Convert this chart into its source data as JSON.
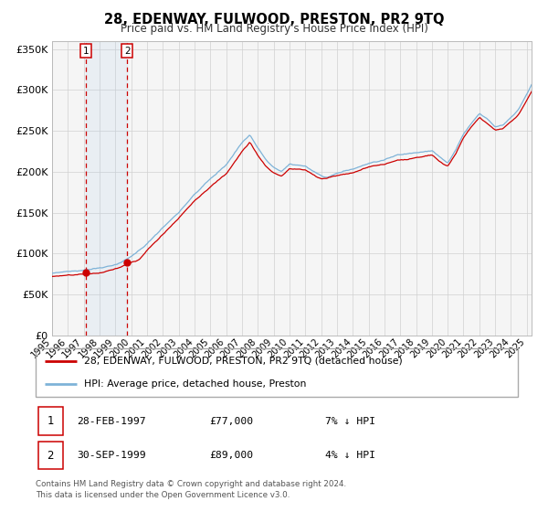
{
  "title": "28, EDENWAY, FULWOOD, PRESTON, PR2 9TQ",
  "subtitle": "Price paid vs. HM Land Registry's House Price Index (HPI)",
  "legend_line1": "28, EDENWAY, FULWOOD, PRESTON, PR2 9TQ (detached house)",
  "legend_line2": "HPI: Average price, detached house, Preston",
  "sale1_date": "28-FEB-1997",
  "sale1_price": 77000,
  "sale1_note": "7% ↓ HPI",
  "sale2_date": "30-SEP-1999",
  "sale2_price": 89000,
  "sale2_note": "4% ↓ HPI",
  "footer": "Contains HM Land Registry data © Crown copyright and database right 2024.\nThis data is licensed under the Open Government Licence v3.0.",
  "hpi_color": "#7eb3d8",
  "price_color": "#cc0000",
  "sale1_x": 1997.12,
  "sale2_x": 1999.75,
  "ylim": [
    0,
    360000
  ],
  "xlim_start": 1995.0,
  "xlim_end": 2025.3,
  "bg_color": "#f5f5f5"
}
